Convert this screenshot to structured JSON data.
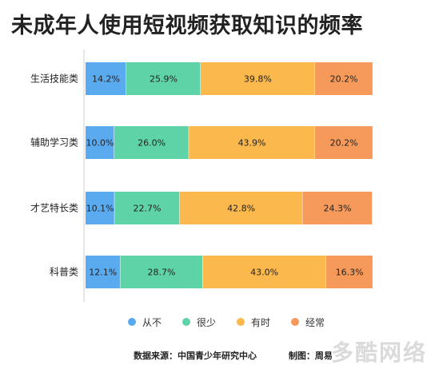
{
  "chart_data": {
    "type": "bar",
    "stacked": true,
    "orientation": "horizontal",
    "title": "未成年人使用短视频获取知识的频率",
    "categories": [
      "生活技能类",
      "辅助学习类",
      "才艺特长类",
      "科普类"
    ],
    "series": [
      {
        "name": "从不",
        "color": "#5aaaf0",
        "values": [
          14.2,
          10.0,
          10.1,
          12.1
        ]
      },
      {
        "name": "很少",
        "color": "#5fd3a8",
        "values": [
          25.9,
          26.0,
          22.7,
          28.7
        ]
      },
      {
        "name": "有时",
        "color": "#fbb84c",
        "values": [
          39.8,
          43.9,
          42.8,
          43.0
        ]
      },
      {
        "name": "经常",
        "color": "#f59a5a",
        "values": [
          20.2,
          20.2,
          24.3,
          16.3
        ]
      }
    ],
    "value_suffix": "%",
    "xlim": [
      0,
      100
    ],
    "legend_position": "bottom"
  },
  "footer": {
    "source": "数据来源：中国青少年研究中心",
    "author": "制图：周易"
  },
  "watermark": "多酷网络"
}
